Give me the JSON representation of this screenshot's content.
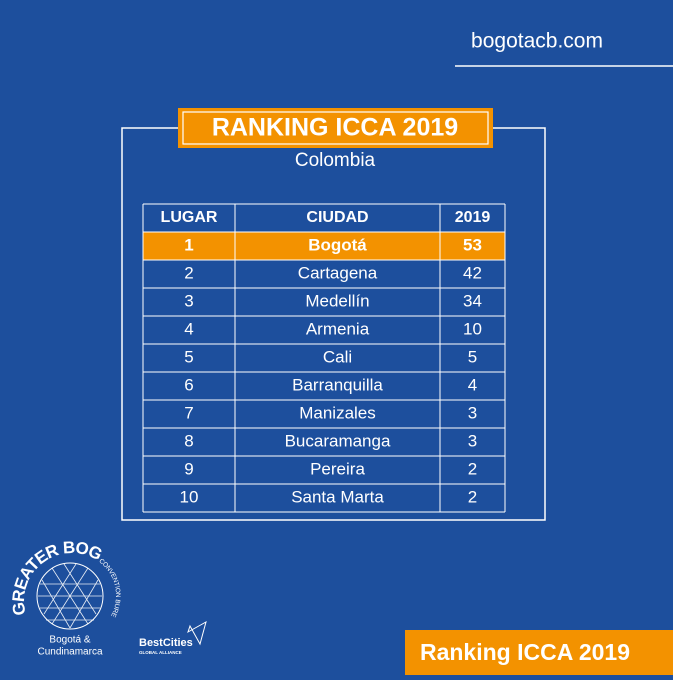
{
  "site": "bogotacb.com",
  "title": "RANKING ICCA 2019",
  "subtitle": "Colombia",
  "table": {
    "headers": [
      "LUGAR",
      "CIUDAD",
      "2019"
    ],
    "rows": [
      [
        1,
        "Bogotá",
        53
      ],
      [
        2,
        "Cartagena",
        42
      ],
      [
        3,
        "Medellín",
        34
      ],
      [
        4,
        "Armenia",
        10
      ],
      [
        5,
        "Cali",
        5
      ],
      [
        6,
        "Barranquilla",
        4
      ],
      [
        7,
        "Manizales",
        3
      ],
      [
        8,
        "Bucaramanga",
        3
      ],
      [
        9,
        "Pereira",
        2
      ],
      [
        10,
        "Santa Marta",
        2
      ]
    ]
  },
  "logo": {
    "name": "GREATER BOGOTÁ",
    "tagline": "CONVENTION BUREAU",
    "region_line1": "Bogotá &",
    "region_line2": "Cundinamarca"
  },
  "partner": {
    "name": "BestCities",
    "tagline": "GLOBAL ALLIANCE"
  },
  "footer": "Ranking ICCA 2019"
}
